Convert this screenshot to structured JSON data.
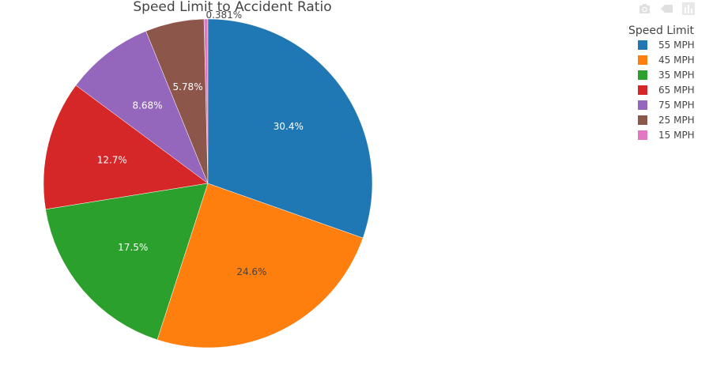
{
  "chart_data": {
    "type": "pie",
    "title": "Speed Limit to Accident Ratio",
    "legend_title": "Speed Limit",
    "legend_position": "top-right",
    "slices": [
      {
        "label": "55 MPH",
        "value": 30.4,
        "text": "30.4%",
        "color": "#1f77b4"
      },
      {
        "label": "45 MPH",
        "value": 24.6,
        "text": "24.6%",
        "color": "#ff7f0e"
      },
      {
        "label": "35 MPH",
        "value": 17.5,
        "text": "17.5%",
        "color": "#2ca02c"
      },
      {
        "label": "65 MPH",
        "value": 12.7,
        "text": "12.7%",
        "color": "#d62728"
      },
      {
        "label": "75 MPH",
        "value": 8.68,
        "text": "8.68%",
        "color": "#9467bd"
      },
      {
        "label": "25 MPH",
        "value": 5.78,
        "text": "5.78%",
        "color": "#8c564b"
      },
      {
        "label": "15 MPH",
        "value": 0.381,
        "text": "0.381%",
        "color": "#e377c2"
      }
    ],
    "slice_order": [
      "15 MPH",
      "25 MPH",
      "75 MPH",
      "65 MPH",
      "35 MPH",
      "45 MPH",
      "55 MPH"
    ],
    "direction": "clockwise-from-top"
  },
  "toolbar": {
    "icons": [
      "camera-icon",
      "zoom-out-icon",
      "bar-chart-icon"
    ]
  }
}
